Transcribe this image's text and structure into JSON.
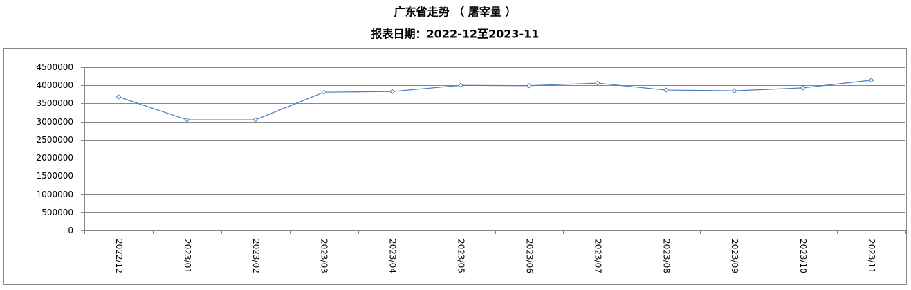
{
  "chart_data": {
    "type": "line",
    "title": "广东省走势 （ 屠宰量 ）",
    "subtitle": "报表日期：2022-12至2023-11",
    "categories": [
      "2022/12",
      "2023/01",
      "2023/02",
      "2023/03",
      "2023/04",
      "2023/05",
      "2023/06",
      "2023/07",
      "2023/08",
      "2023/09",
      "2023/10",
      "2023/11"
    ],
    "series": [
      {
        "name": "屠宰量",
        "color": "#4a7ebb",
        "values": [
          3680000,
          3050000,
          3050000,
          3810000,
          3830000,
          4000000,
          3990000,
          4060000,
          3870000,
          3850000,
          3930000,
          4140000
        ]
      }
    ],
    "ylim": [
      0,
      4500000
    ],
    "yticks": [
      0,
      500000,
      1000000,
      1500000,
      2000000,
      2500000,
      3000000,
      3500000,
      4000000,
      4500000
    ],
    "grid": true
  }
}
